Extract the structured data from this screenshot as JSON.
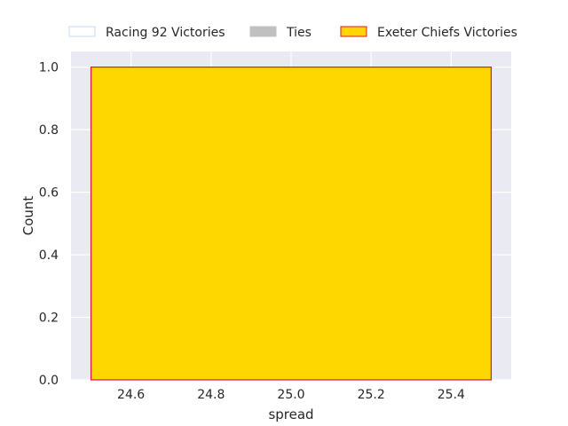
{
  "chart_data": {
    "type": "bar",
    "title": "",
    "xlabel": "spread",
    "ylabel": "Count",
    "xlim": [
      24.45,
      25.55
    ],
    "ylim": [
      0,
      1.05
    ],
    "xticks": [
      24.6,
      24.8,
      25.0,
      25.2,
      25.4
    ],
    "xtick_labels": [
      "24.6",
      "24.8",
      "25.0",
      "25.2",
      "25.4"
    ],
    "yticks": [
      0.0,
      0.2,
      0.4,
      0.6,
      0.8,
      1.0
    ],
    "ytick_labels": [
      "0.0",
      "0.2",
      "0.4",
      "0.6",
      "0.8",
      "1.0"
    ],
    "grid": true,
    "legend_position": "top-center",
    "series": [
      {
        "name": "Racing 92 Victories",
        "fill": "#ffffff",
        "edge": "#c6dbef",
        "bins": []
      },
      {
        "name": "Ties",
        "fill": "#c0c0c0",
        "edge": "#c0c0c0",
        "bins": []
      },
      {
        "name": "Exeter Chiefs Victories",
        "fill": "#ffd700",
        "edge": "#dc143c",
        "bins": [
          {
            "x0": 24.5,
            "x1": 25.5,
            "count": 1
          }
        ]
      }
    ]
  },
  "colors": {
    "plot_background": "#eaeaf2",
    "grid": "#ffffff"
  }
}
